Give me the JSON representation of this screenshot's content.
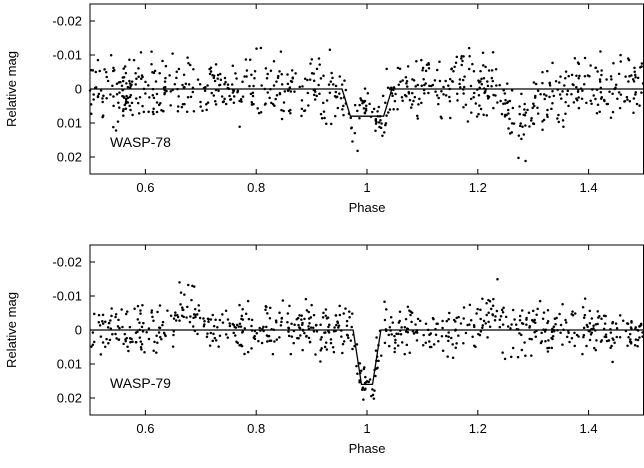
{
  "chart_data": [
    {
      "type": "scatter",
      "xlabel": "Phase",
      "ylabel": "Relative mag",
      "annotation": "WASP-78",
      "xlim": [
        0.5,
        1.5
      ],
      "ylim": [
        -0.025,
        0.025
      ],
      "y_inverted": true,
      "x_ticks": [
        0.6,
        0.8,
        1,
        1.2,
        1.4
      ],
      "x_tick_labels": [
        "0.6",
        "0.8",
        "1",
        "1.2",
        "1.4"
      ],
      "y_ticks": [
        -0.02,
        -0.01,
        0,
        0.01,
        0.02
      ],
      "y_tick_labels": [
        "-0.02",
        "-0.01",
        "0",
        "0.01",
        "0.02"
      ],
      "grid": false,
      "model": {
        "baseline": 0,
        "depth": 0.008,
        "ingress_start": 0.955,
        "full_start": 0.97,
        "full_end": 1.03,
        "egress_end": 1.045
      },
      "points": {
        "count": 780,
        "seed": 78,
        "scatter_sigma": 0.0045,
        "features": [
          {
            "x_center": 1.28,
            "width": 0.03,
            "dip": 0.009
          }
        ]
      },
      "colors": {
        "points": "#000000",
        "model": "#000000"
      }
    },
    {
      "type": "scatter",
      "xlabel": "Phase",
      "ylabel": "Relative mag",
      "annotation": "WASP-79",
      "xlim": [
        0.5,
        1.5
      ],
      "ylim": [
        -0.025,
        0.025
      ],
      "y_inverted": true,
      "x_ticks": [
        0.6,
        0.8,
        1,
        1.2,
        1.4
      ],
      "x_tick_labels": [
        "0.6",
        "0.8",
        "1",
        "1.2",
        "1.4"
      ],
      "y_ticks": [
        -0.02,
        -0.01,
        0,
        0.01,
        0.02
      ],
      "y_tick_labels": [
        "-0.02",
        "-0.01",
        "0",
        "0.01",
        "0.02"
      ],
      "grid": false,
      "model": {
        "baseline": 0,
        "depth": 0.016,
        "ingress_start": 0.975,
        "full_start": 0.99,
        "full_end": 1.01,
        "egress_end": 1.025
      },
      "points": {
        "count": 720,
        "seed": 79,
        "scatter_sigma": 0.0035,
        "features": [
          {
            "x_center": 0.68,
            "width": 0.025,
            "dip": -0.008
          },
          {
            "x_center": 1.23,
            "width": 0.02,
            "dip": -0.006
          }
        ]
      },
      "colors": {
        "points": "#000000",
        "model": "#000000"
      }
    }
  ]
}
